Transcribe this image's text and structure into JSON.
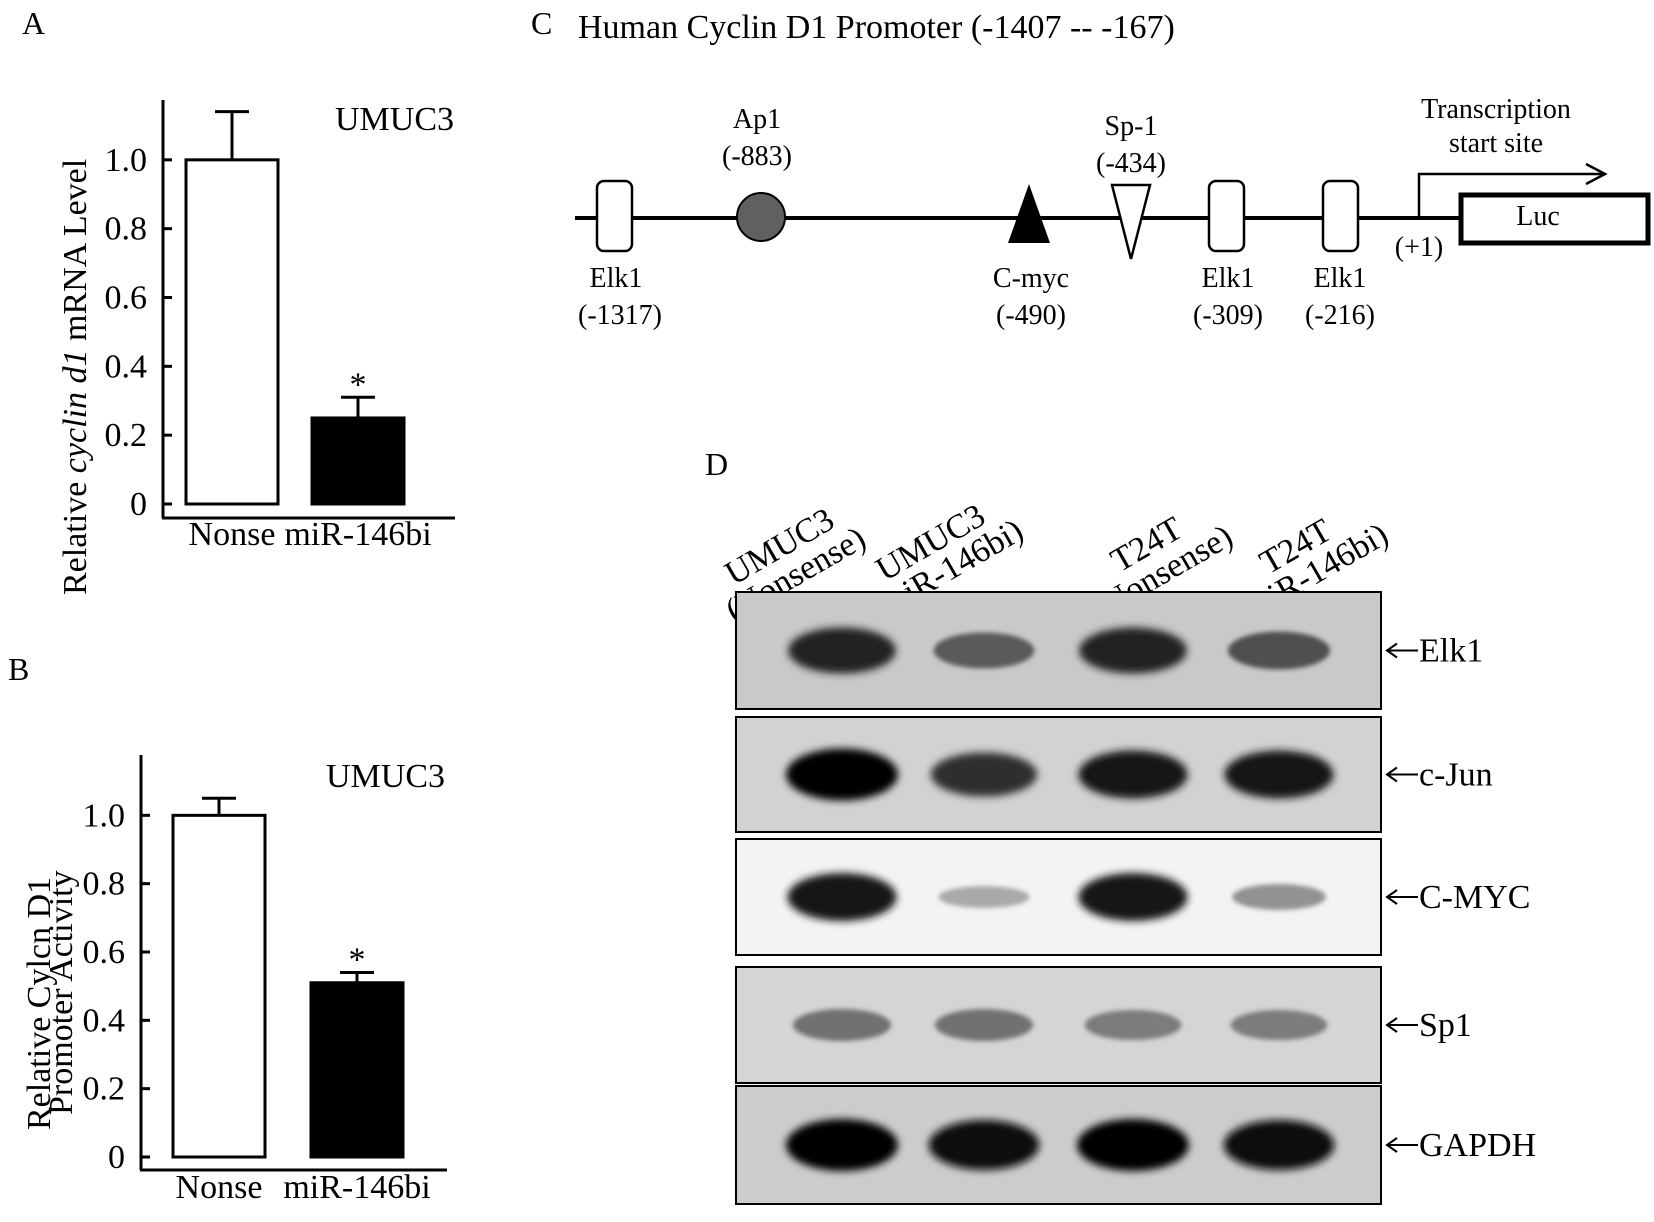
{
  "panel_a": {
    "letter": "A",
    "cell_line": "UMUC3",
    "ylabel_prefix": "Relative ",
    "ylabel_italic": "cyclin d1",
    "ylabel_suffix": "  mRNA Level",
    "significance": "*"
  },
  "panel_b": {
    "letter": "B",
    "cell_line": "UMUC3",
    "ylabel_line1": "Relative  Cylcn D1",
    "ylabel_line2": "Promoter Activity",
    "significance": "*"
  },
  "chart_data": [
    {
      "type": "bar",
      "categories": [
        "Nonse",
        "miR-146bi"
      ],
      "values": [
        1.0,
        0.25
      ],
      "errors": [
        0.14,
        0.06
      ],
      "bar_colors": [
        "#ffffff",
        "#000000"
      ],
      "yticks": [
        "0",
        "0.2",
        "0.4",
        "0.6",
        "0.8",
        "1.0"
      ],
      "ylim": [
        0,
        1.2
      ]
    },
    {
      "type": "bar",
      "categories": [
        "Nonse",
        "miR-146bi"
      ],
      "values": [
        1.0,
        0.51
      ],
      "errors": [
        0.05,
        0.03
      ],
      "bar_colors": [
        "#ffffff",
        "#000000"
      ],
      "yticks": [
        "0",
        "0.2",
        "0.4",
        "0.6",
        "0.8",
        "1.0"
      ],
      "ylim": [
        0,
        1.2
      ]
    }
  ],
  "panel_c": {
    "letter": "C",
    "title": "Human Cyclin D1 Promoter  (-1407 -- -167)",
    "sites": [
      {
        "name": "Elk1",
        "pos": "(-1317)",
        "shape": "box"
      },
      {
        "name": "Ap1",
        "pos": "(-883)",
        "shape": "circle"
      },
      {
        "name": "C-myc",
        "pos": "(-490)",
        "shape": "triangle-up"
      },
      {
        "name": "Sp-1",
        "pos": "(-434)",
        "shape": "triangle-down"
      },
      {
        "name": "Elk1",
        "pos": "(-309)",
        "shape": "box"
      },
      {
        "name": "Elk1",
        "pos": "(-216)",
        "shape": "box"
      }
    ],
    "tss_line1": "Transcription",
    "tss_line2": "start site",
    "plus_one": "(+1)",
    "reporter": "Luc"
  },
  "panel_d": {
    "letter": "D",
    "lanes": [
      {
        "line1": "UMUC3",
        "line2": "(Nonsense)"
      },
      {
        "line1": "UMUC3",
        "line2": "(miR-146bi)"
      },
      {
        "line1": "T24T",
        "line2": "(Nonsense)"
      },
      {
        "line1": "T24T",
        "line2": "(miR-146bi)"
      }
    ],
    "blots": [
      {
        "label": "Elk1",
        "intensity": [
          0.85,
          0.6,
          0.85,
          0.65
        ]
      },
      {
        "label": "c-Jun",
        "intensity": [
          1.0,
          0.8,
          0.9,
          0.9
        ]
      },
      {
        "label": "C-MYC",
        "intensity": [
          0.9,
          0.25,
          0.9,
          0.35
        ]
      },
      {
        "label": "Sp1",
        "intensity": [
          0.5,
          0.5,
          0.45,
          0.45
        ]
      },
      {
        "label": "GAPDH",
        "intensity": [
          1.0,
          0.95,
          1.0,
          0.95
        ]
      }
    ]
  }
}
